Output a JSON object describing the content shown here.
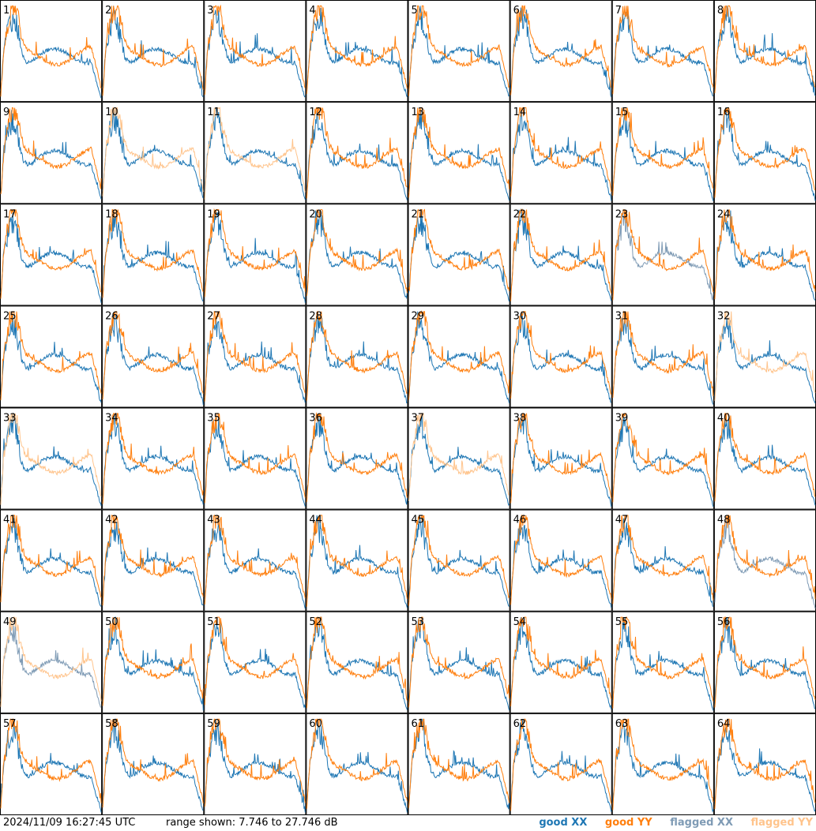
{
  "footer": {
    "timestamp": "2024/11/09 16:27:45 UTC",
    "range_text": "range shown: 7.746 to 27.746 dB"
  },
  "legend": [
    {
      "label": "good XX",
      "color": "#1f77b4"
    },
    {
      "label": "good YY",
      "color": "#ff7f0e"
    },
    {
      "label": "flagged XX",
      "color": "#7f9bb5"
    },
    {
      "label": "flagged YY",
      "color": "#ffc48c"
    }
  ],
  "chart_data": {
    "type": "line",
    "layout": "8x8 small multiples",
    "ylim": [
      7.746,
      27.746
    ],
    "y_unit": "dB",
    "panel_labels": [
      "1",
      "2",
      "3",
      "4",
      "5",
      "6",
      "7",
      "8",
      "9",
      "10",
      "11",
      "12",
      "13",
      "14",
      "15",
      "16",
      "17",
      "18",
      "19",
      "20",
      "21",
      "22",
      "23",
      "24",
      "25",
      "26",
      "27",
      "28",
      "29",
      "30",
      "31",
      "32",
      "33",
      "34",
      "35",
      "36",
      "37",
      "38",
      "39",
      "40",
      "41",
      "42",
      "43",
      "44",
      "45",
      "46",
      "47",
      "48",
      "49",
      "50",
      "51",
      "52",
      "53",
      "54",
      "55",
      "56",
      "57",
      "58",
      "59",
      "60",
      "61",
      "62",
      "63",
      "64"
    ],
    "flags": {
      "xx_flagged": [
        23,
        48,
        49
      ],
      "yy_flagged": [
        10,
        11,
        32,
        33,
        37,
        49
      ]
    },
    "series_note": "XX and YY spectra per antenna panel"
  }
}
